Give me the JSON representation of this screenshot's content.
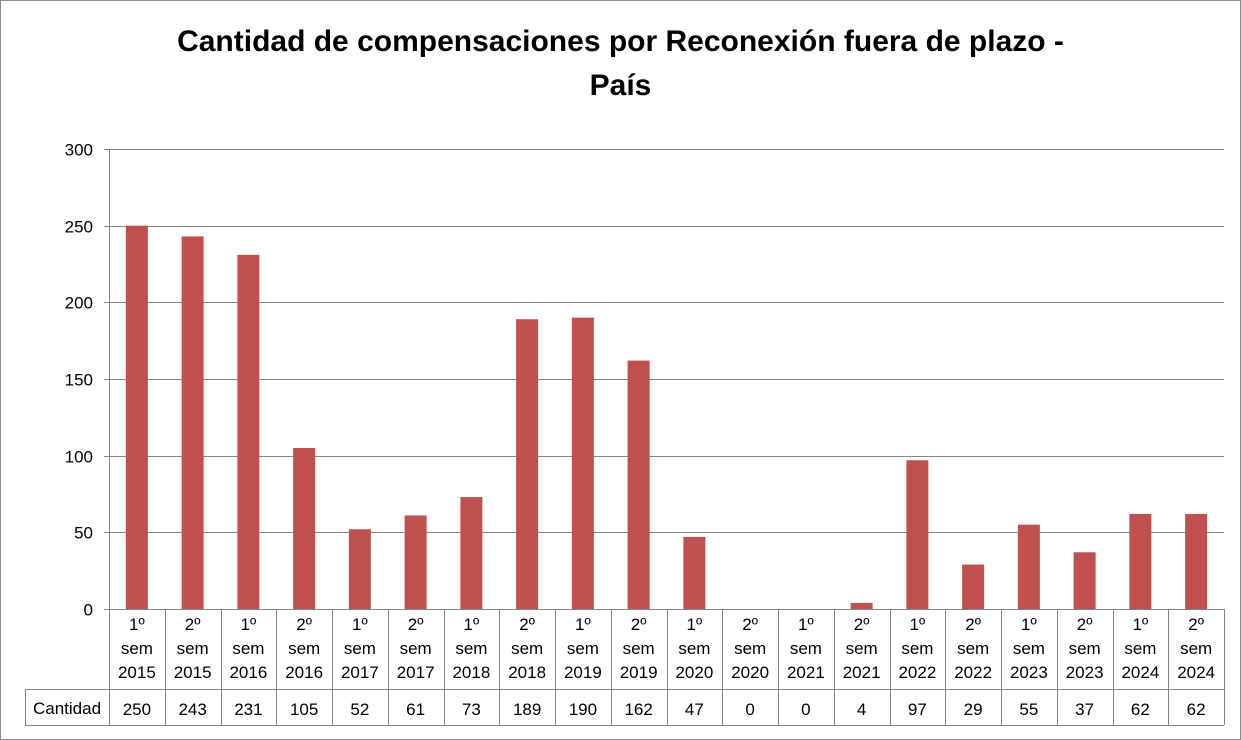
{
  "chart_data": {
    "type": "bar",
    "title_line1": "Cantidad de compensaciones por Reconexión fuera de plazo -",
    "title_line2": "País",
    "categories": [
      [
        "1º",
        "sem",
        "2015"
      ],
      [
        "2º",
        "sem",
        "2015"
      ],
      [
        "1º",
        "sem",
        "2016"
      ],
      [
        "2º",
        "sem",
        "2016"
      ],
      [
        "1º",
        "sem",
        "2017"
      ],
      [
        "2º",
        "sem",
        "2017"
      ],
      [
        "1º",
        "sem",
        "2018"
      ],
      [
        "2º",
        "sem",
        "2018"
      ],
      [
        "1º",
        "sem",
        "2019"
      ],
      [
        "2º",
        "sem",
        "2019"
      ],
      [
        "1º",
        "sem",
        "2020"
      ],
      [
        "2º",
        "sem",
        "2020"
      ],
      [
        "1º",
        "sem",
        "2021"
      ],
      [
        "2º",
        "sem",
        "2021"
      ],
      [
        "1º",
        "sem",
        "2022"
      ],
      [
        "2º",
        "sem",
        "2022"
      ],
      [
        "1º",
        "sem",
        "2023"
      ],
      [
        "2º",
        "sem",
        "2023"
      ],
      [
        "1º",
        "sem",
        "2024"
      ],
      [
        "2º",
        "sem",
        "2024"
      ]
    ],
    "series": [
      {
        "name": "Cantidad",
        "color": "#c0504d",
        "values": [
          250,
          243,
          231,
          105,
          52,
          61,
          73,
          189,
          190,
          162,
          47,
          0,
          0,
          4,
          97,
          29,
          55,
          37,
          62,
          62
        ]
      }
    ],
    "yticks": [
      0,
      50,
      100,
      150,
      200,
      250,
      300
    ],
    "ylim": [
      0,
      300
    ],
    "grid": true,
    "data_table": true
  }
}
